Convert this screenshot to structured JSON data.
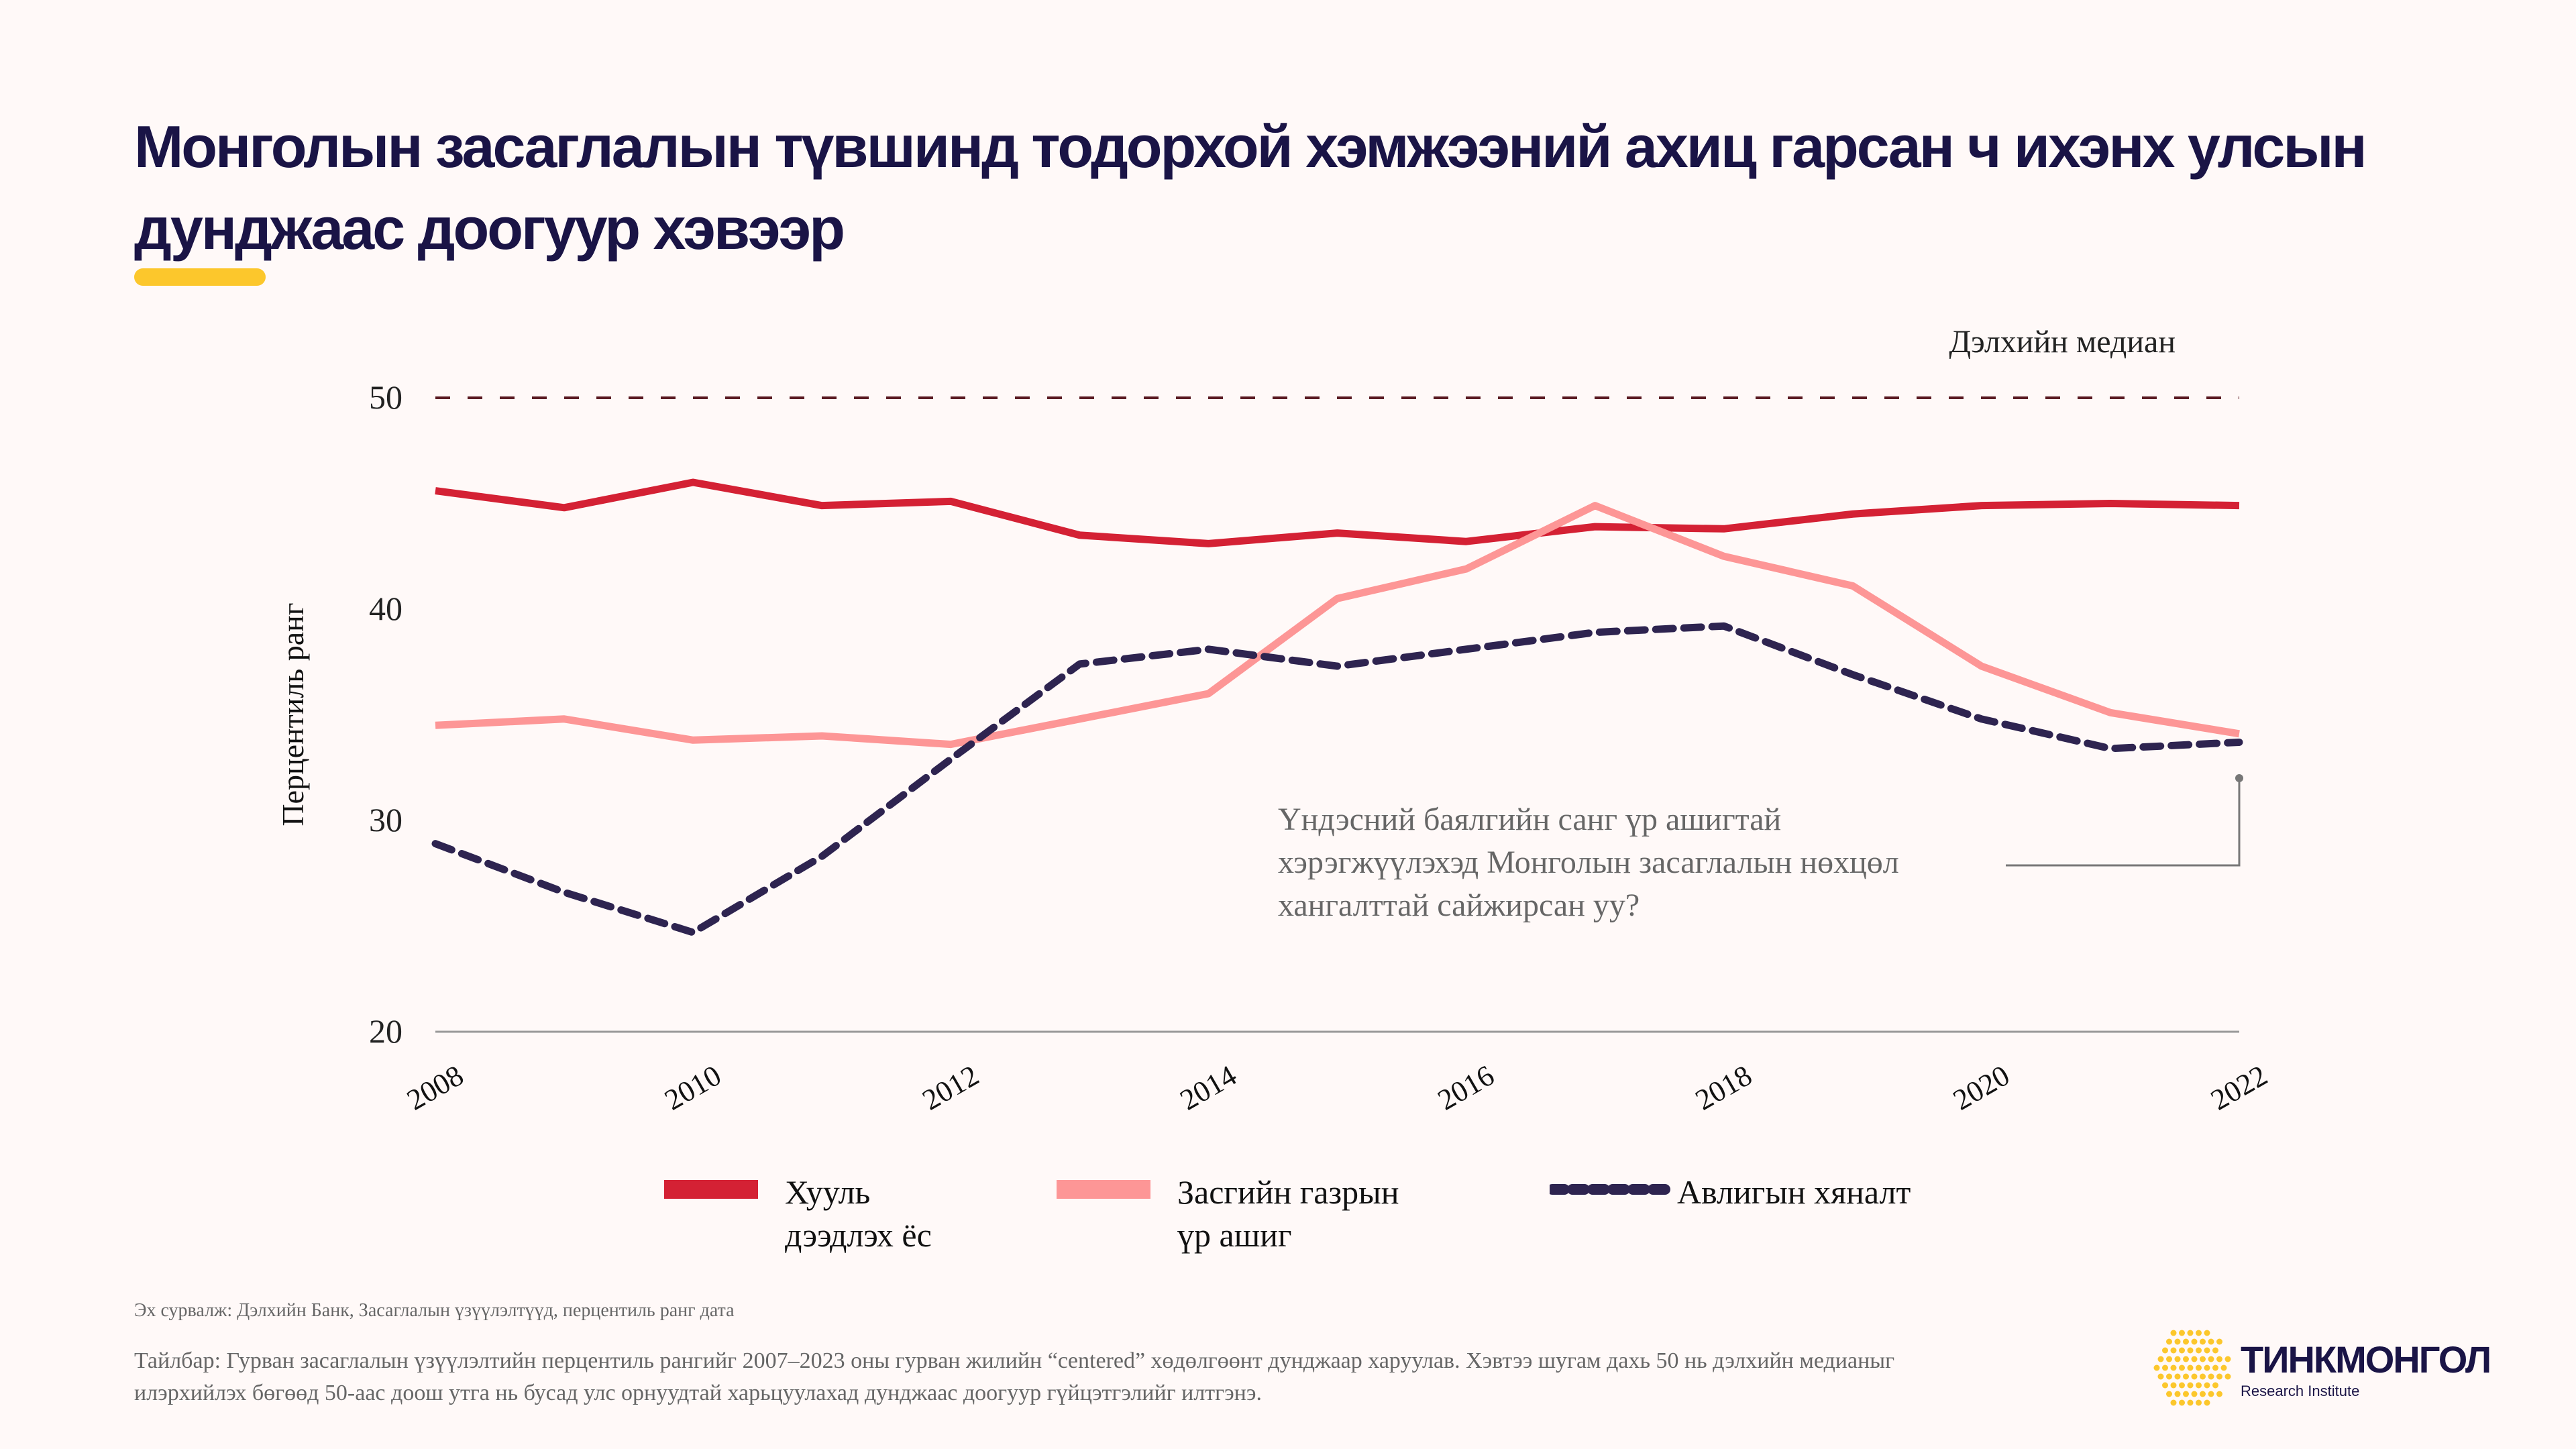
{
  "title": "Монголын засаглалын түвшинд тодорхой хэмжээний ахиц гарсан ч ихэнх улсын дунджаас доогуур хэвээр",
  "chart_data": {
    "type": "line",
    "title": "Монголын засаглалын түвшинд тодорхой хэмжээний ахиц гарсан ч ихэнх улсын дунджаас доогуур хэвээр",
    "xlabel": "",
    "ylabel": "Перцентиль ранг",
    "ylim": [
      20,
      50
    ],
    "xlim": [
      2008,
      2022
    ],
    "yticks": [
      "20",
      "30",
      "40",
      "50"
    ],
    "xticks": [
      "2008",
      "2010",
      "2012",
      "2014",
      "2016",
      "2018",
      "2020",
      "2022"
    ],
    "x": [
      2008,
      2009,
      2010,
      2011,
      2012,
      2013,
      2014,
      2015,
      2016,
      2017,
      2018,
      2019,
      2020,
      2021,
      2022
    ],
    "series": [
      {
        "name": "Хууль дээдлэх ёс",
        "legend": "Хууль\nдээдлэх ёс",
        "color": "#d42134",
        "style": "solid",
        "values": [
          45.6,
          44.8,
          46.0,
          44.9,
          45.1,
          43.5,
          43.1,
          43.6,
          43.2,
          43.9,
          43.8,
          44.5,
          44.9,
          45.0,
          44.9
        ]
      },
      {
        "name": "Засгийн газрын үр ашиг",
        "legend": "Засгийн газрын\nүр ашиг",
        "color": "#fd9696",
        "style": "solid",
        "values": [
          34.5,
          34.8,
          33.8,
          34.0,
          33.6,
          34.8,
          36.0,
          40.5,
          41.9,
          44.9,
          42.5,
          41.1,
          37.3,
          35.1,
          34.1
        ]
      },
      {
        "name": "Авлигын хяналт",
        "legend": "Авлигын хяналт",
        "color": "#2e2450",
        "style": "dashed",
        "values": [
          28.9,
          26.6,
          24.7,
          28.3,
          32.9,
          37.4,
          38.1,
          37.3,
          38.1,
          38.9,
          39.2,
          36.9,
          34.8,
          33.4,
          33.7
        ]
      }
    ],
    "reference_line": {
      "value": 50,
      "label": "Дэлхийн медиан",
      "color": "#5a1a22"
    },
    "annotation": {
      "lines": [
        "Үндэсний баялгийн санг үр ашигтай",
        "хэрэгжүүлэхэд Монголын засаглалын нөхцөл",
        "хангалттай сайжирсан уу?"
      ],
      "x": 2022,
      "y": 32
    },
    "grid": false,
    "legend_position": "bottom"
  },
  "footer": {
    "source": "Эх сурвалж: Дэлхийн Банк, Засаглалын үзүүлэлтүүд, перцентиль ранг дата",
    "note": "Тайлбар: Гурван засаглалын үзүүлэлтийн перцентиль рангийг 2007–2023 оны гурван жилийн “centered” хөдөлгөөнт дунджаар харуулав. Хэвтээ шугам дахь 50 нь дэлхийн медианыг илэрхийлэх бөгөөд 50-аас доош утга нь бусад улс орнуудтай харьцуулахад дунджаас доогуур гүйцэтгэлийг илтгэнэ."
  },
  "logo": {
    "name": "ТИНКМОНГОЛ",
    "sub": "Research Institute",
    "color": "#fcc72c"
  }
}
